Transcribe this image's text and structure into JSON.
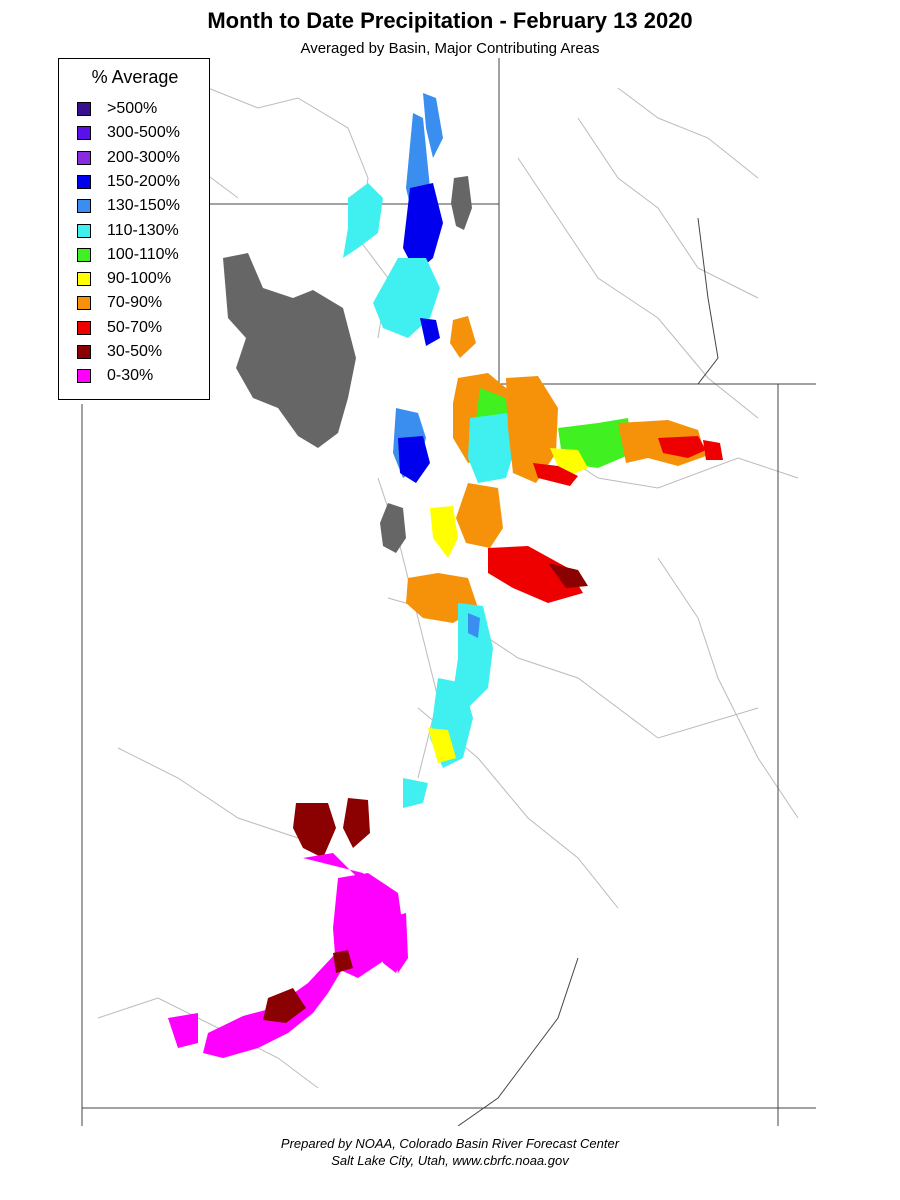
{
  "header": {
    "title": "Month to Date Precipitation - February 13 2020",
    "subtitle": "Averaged by Basin, Major Contributing Areas"
  },
  "legend": {
    "title": "% Average",
    "items": [
      {
        "label": ">500%",
        "color": "#3a0f8f"
      },
      {
        "label": "300-500%",
        "color": "#5a10e6"
      },
      {
        "label": "200-300%",
        "color": "#8a2be2"
      },
      {
        "label": "150-200%",
        "color": "#0000ee"
      },
      {
        "label": "130-150%",
        "color": "#3a8ef0"
      },
      {
        "label": "110-130%",
        "color": "#40f0f0"
      },
      {
        "label": "100-110%",
        "color": "#40f020"
      },
      {
        "label": "90-100%",
        "color": "#ffff00"
      },
      {
        "label": "70-90%",
        "color": "#f5920a"
      },
      {
        "label": "50-70%",
        "color": "#ee0000"
      },
      {
        "label": "30-50%",
        "color": "#8b0000"
      },
      {
        "label": "0-30%",
        "color": "#ff00ff"
      }
    ]
  },
  "map": {
    "lake_color": "#666666",
    "boundary_color": "#bbbbbb"
  },
  "footer": {
    "line1": "Prepared by NOAA, Colorado Basin River Forecast Center",
    "line2": "Salt Lake City, Utah, www.cbrfc.noaa.gov"
  }
}
